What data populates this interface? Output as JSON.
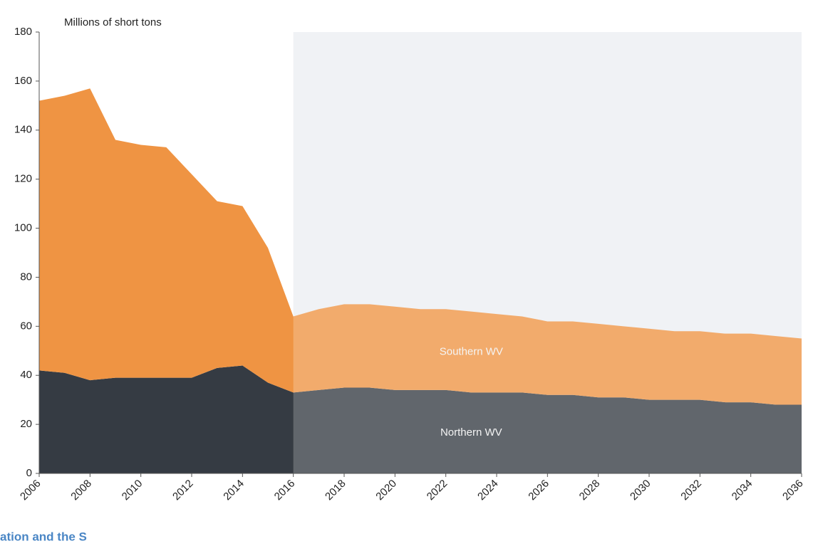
{
  "chart_data": {
    "type": "stacked-area",
    "y_axis_label": "Millions of short tons",
    "x": [
      2006,
      2007,
      2008,
      2009,
      2010,
      2011,
      2012,
      2013,
      2014,
      2015,
      2016,
      2017,
      2018,
      2019,
      2020,
      2021,
      2022,
      2023,
      2024,
      2025,
      2026,
      2027,
      2028,
      2029,
      2030,
      2031,
      2032,
      2033,
      2034,
      2035,
      2036
    ],
    "series": [
      {
        "name": "Northern WV",
        "color": "#353b43",
        "values": [
          42,
          41,
          38,
          39,
          39,
          39,
          39,
          43,
          44,
          37,
          33,
          34,
          35,
          35,
          34,
          34,
          34,
          33,
          33,
          33,
          32,
          32,
          31,
          31,
          30,
          30,
          30,
          29,
          29,
          28,
          28
        ]
      },
      {
        "name": "Southern WV",
        "color": "#ef9443",
        "values": [
          110,
          113,
          119,
          97,
          95,
          94,
          83,
          68,
          65,
          55,
          31,
          33,
          34,
          34,
          34,
          33,
          33,
          33,
          32,
          31,
          30,
          30,
          30,
          29,
          29,
          28,
          28,
          28,
          28,
          28,
          27
        ]
      }
    ],
    "xlim": [
      2006,
      2036
    ],
    "xticks": [
      2006,
      2008,
      2010,
      2012,
      2014,
      2016,
      2018,
      2020,
      2022,
      2024,
      2026,
      2028,
      2030,
      2032,
      2034,
      2036
    ],
    "ylim": [
      0,
      180
    ],
    "yticks": [
      0,
      20,
      40,
      60,
      80,
      100,
      120,
      140,
      160,
      180
    ],
    "caption": "ation and the S"
  }
}
